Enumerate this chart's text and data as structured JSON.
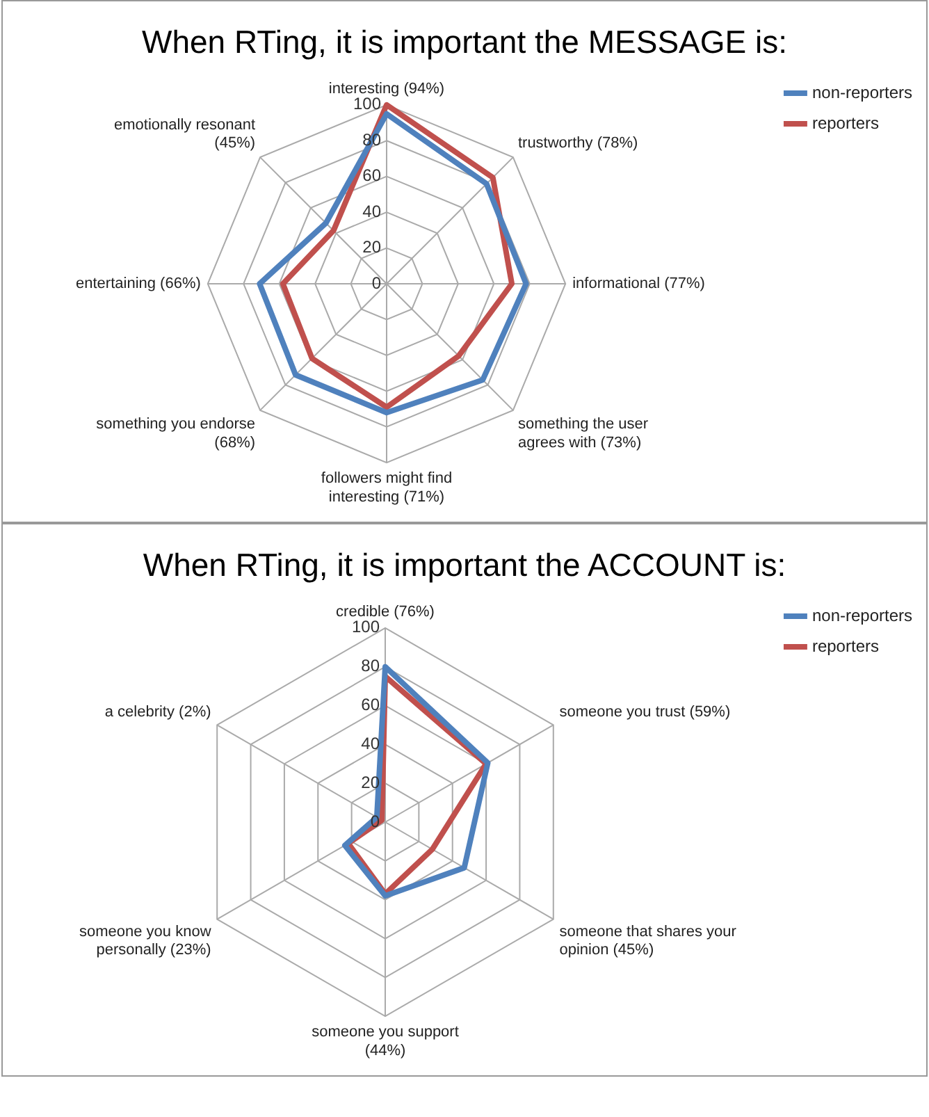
{
  "chart_data": [
    {
      "type": "radar",
      "title": "When RTing, it is important the MESSAGE is:",
      "categories": [
        "interesting (94%)",
        "trustworthy (78%)",
        "informational (77%)",
        "something the user\nagrees with (73%)",
        "followers might find\ninteresting (71%)",
        "something you endorse\n(68%)",
        "entertaining (66%)",
        "emotionally resonant\n(45%)"
      ],
      "series": [
        {
          "name": "non-reporters",
          "color": "#4f81bd",
          "values": [
            95,
            79,
            78,
            76,
            72,
            72,
            71,
            48
          ]
        },
        {
          "name": "reporters",
          "color": "#c0504d",
          "values": [
            100,
            84,
            70,
            57,
            69,
            59,
            58,
            42
          ]
        }
      ],
      "ylim": [
        0,
        100
      ],
      "yticks": [
        0,
        20,
        40,
        60,
        80,
        100
      ],
      "legend": "top right",
      "marker": "none",
      "grid": true
    },
    {
      "type": "radar",
      "title": "When RTing, it is important the ACCOUNT is:",
      "categories": [
        "credible (76%)",
        "someone you trust (59%)",
        "someone that shares your\nopinion (45%)",
        "someone you support\n(44%)",
        "someone you know\npersonally (23%)",
        "a celebrity (2%)"
      ],
      "series": [
        {
          "name": "non-reporters",
          "color": "#4f81bd",
          "values": [
            80,
            61,
            47,
            38,
            24,
            5
          ]
        },
        {
          "name": "reporters",
          "color": "#c0504d",
          "values": [
            75,
            60,
            28,
            37,
            22,
            2
          ]
        }
      ],
      "ylim": [
        0,
        100
      ],
      "yticks": [
        0,
        20,
        40,
        60,
        80,
        100
      ],
      "legend": "top right",
      "marker": "none",
      "grid": true
    }
  ]
}
